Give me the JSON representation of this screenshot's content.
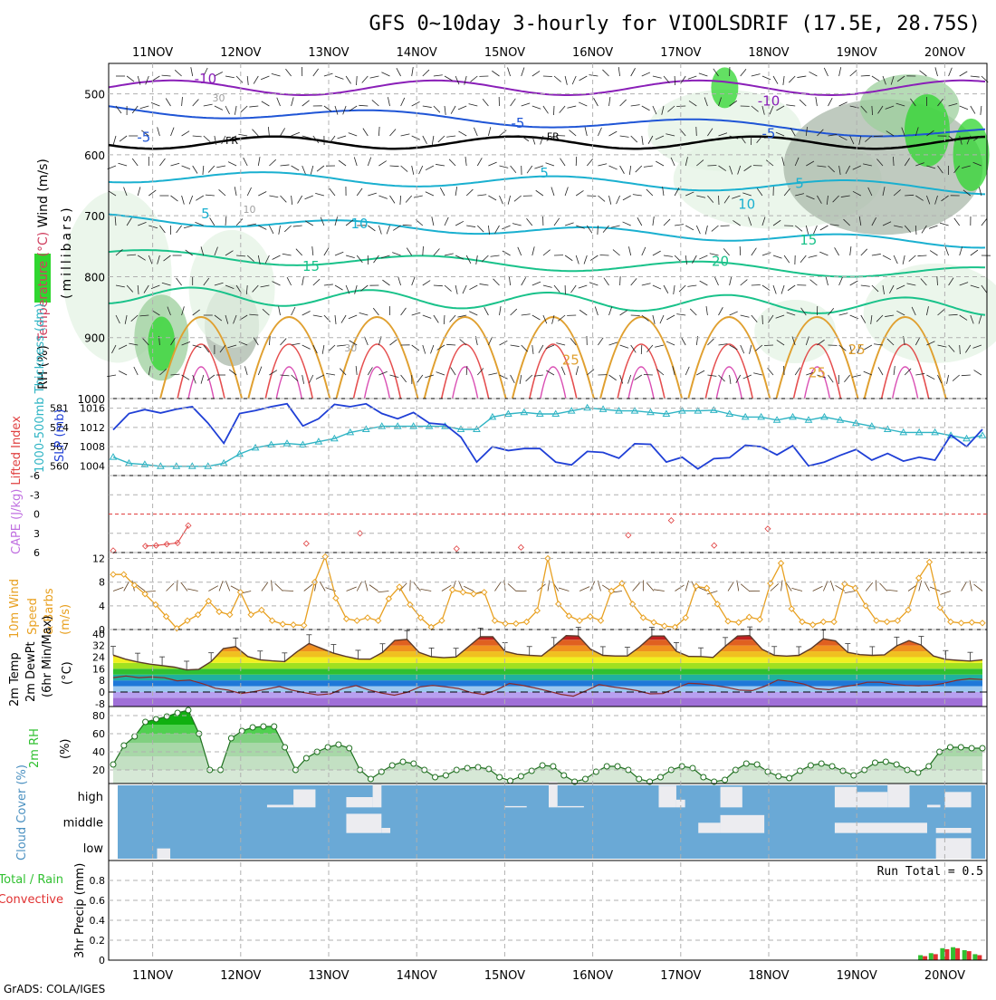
{
  "title": "GFS 0~10day 3-hourly for VIOOLSDRIF (17.5E, 28.75S)",
  "footer": "GrADS: COLA/IGES",
  "colors": {
    "grid": "#b0b0b0",
    "temp_neg": "#8a1fb8",
    "temp_cold": "#1f55d6",
    "temp_cool": "#1ab0d0",
    "temp_mild": "#19c28a",
    "temp_warm": "#e0a030",
    "temp_hot": "#e03030",
    "freezing": "#000000",
    "rh_light": "#e4f3e4",
    "rh_mid": "#9ccf9c",
    "rh_gray": "#a9b8a9",
    "rh_green": "#2fd62f",
    "slp": "#1f3fd6",
    "thickness": "#2fb4c4",
    "lifted": "#e04040",
    "cape": "#c070e0",
    "wind10": "#e8a020",
    "cloud": "#6aa9d6",
    "cloud_block": "#ececf0",
    "precip_total": "#30c030",
    "precip_conv": "#e03030"
  },
  "chart_data": [
    {
      "id": "upper",
      "type": "heatmap",
      "title": "",
      "x_labels": [
        "11NOV",
        "12NOV",
        "13NOV",
        "14NOV",
        "15NOV",
        "16NOV",
        "17NOV",
        "18NOV",
        "19NOV",
        "20NOV"
      ],
      "ylabel_parts": [
        "RH (%)",
        "Temperature (°C)",
        "Wind (m/s)"
      ],
      "ylabel_sub": "(millibars)",
      "y_ticks": [
        500,
        600,
        700,
        800,
        900,
        1000
      ],
      "ylim": [
        1000,
        450
      ],
      "isotherm_labels": [
        {
          "x": 11.6,
          "p": 475,
          "text": "-10"
        },
        {
          "x": 18.0,
          "p": 512,
          "text": "-10"
        },
        {
          "x": 10.9,
          "p": 571,
          "text": "-5"
        },
        {
          "x": 15.15,
          "p": 548,
          "text": "-5"
        },
        {
          "x": 18.0,
          "p": 565,
          "text": "-5"
        },
        {
          "x": 11.9,
          "p": 575,
          "text": "FR"
        },
        {
          "x": 15.55,
          "p": 568,
          "text": "FR"
        },
        {
          "x": 11.6,
          "p": 697,
          "text": "5"
        },
        {
          "x": 15.45,
          "p": 630,
          "text": "5"
        },
        {
          "x": 18.35,
          "p": 647,
          "text": "5"
        },
        {
          "x": 13.35,
          "p": 713,
          "text": "10"
        },
        {
          "x": 17.75,
          "p": 681,
          "text": "10"
        },
        {
          "x": 12.8,
          "p": 783,
          "text": "15"
        },
        {
          "x": 18.45,
          "p": 740,
          "text": "15"
        },
        {
          "x": 17.45,
          "p": 775,
          "text": "20"
        },
        {
          "x": 15.75,
          "p": 937,
          "text": "25"
        },
        {
          "x": 18.55,
          "p": 958,
          "text": "25"
        },
        {
          "x": 19.0,
          "p": 920,
          "text": "25"
        },
        {
          "x": 11.75,
          "p": 505,
          "text": "30"
        },
        {
          "x": 12.1,
          "p": 688,
          "text": "10"
        },
        {
          "x": 13.25,
          "p": 915,
          "text": "30"
        }
      ]
    },
    {
      "id": "slp",
      "type": "line",
      "ylabel_left": "1000-500mb Thickness (dm)",
      "ylabel_right": "SLP (mb)",
      "left_ticks": [
        560,
        567,
        574,
        581
      ],
      "right_ticks": [
        1004,
        1008,
        1012,
        1016
      ],
      "ylim_slp": [
        1002,
        1018
      ],
      "series": [
        {
          "name": "SLP",
          "values": [
            1011.5,
            1014.9,
            1015.7,
            1015.0,
            1015.8,
            1016.3,
            1012.9,
            1008.7,
            1014.9,
            1015.5,
            1016.3,
            1016.9,
            1012.3,
            1013.8,
            1016.8,
            1016.3,
            1016.9,
            1014.9,
            1013.8,
            1015.1,
            1012.9,
            1012.6,
            1010.0,
            1004.8,
            1008.0,
            1007.2,
            1007.6,
            1007.6,
            1004.8,
            1004.2,
            1007.0,
            1006.8,
            1005.6,
            1008.6,
            1008.5,
            1004.8,
            1005.8,
            1003.4,
            1005.5,
            1005.7,
            1008.3,
            1008.0,
            1006.3,
            1008.2,
            1004.0,
            1004.8,
            1006.2,
            1007.4,
            1005.2,
            1006.6,
            1005.0,
            1005.8,
            1005.2,
            1010.4,
            1008.0,
            1011.6
          ]
        },
        {
          "name": "Thickness",
          "values": [
            564.0,
            562.0,
            561.6,
            561.0,
            561.0,
            561.0,
            561.0,
            562.0,
            565.0,
            567.0,
            568.0,
            568.4,
            568.0,
            569.0,
            570.0,
            572.0,
            573.0,
            574.0,
            574.0,
            574.0,
            574.0,
            574.0,
            573.0,
            573.0,
            577.0,
            578.0,
            578.5,
            578.0,
            578.0,
            579.0,
            580.0,
            579.5,
            579.0,
            579.0,
            578.5,
            578.0,
            579.0,
            579.0,
            579.2,
            578.0,
            577.0,
            577.0,
            576.0,
            577.0,
            576.0,
            577.0,
            576.0,
            575.0,
            574.0,
            573.0,
            572.0,
            572.0,
            572.0,
            571.0,
            570.0,
            571.0
          ]
        }
      ]
    },
    {
      "id": "cape",
      "type": "line",
      "ylabel_parts": [
        "CAPE (J/kg)",
        "Lifted Index"
      ],
      "y_ticks": [
        -6,
        -3,
        0,
        3,
        6
      ],
      "ylim": [
        6,
        -6
      ],
      "series": [
        {
          "name": "Lifted Index",
          "values": [
            5.7,
            null,
            null,
            5.0,
            4.9,
            4.7,
            4.5,
            1.8,
            null,
            null,
            null,
            null,
            null,
            null,
            null,
            null,
            null,
            null,
            4.6,
            null,
            null,
            null,
            null,
            3.0,
            null,
            null,
            null,
            null,
            null,
            null,
            null,
            null,
            5.4,
            null,
            null,
            null,
            null,
            null,
            5.2,
            null,
            null,
            null,
            null,
            null,
            null,
            null,
            null,
            null,
            3.3,
            null,
            null,
            null,
            1.0,
            null,
            null,
            null,
            4.9,
            null,
            null,
            null,
            null,
            2.3,
            null,
            null,
            null,
            null,
            null,
            null,
            null,
            null,
            null,
            null,
            null,
            null,
            null,
            null,
            null,
            null,
            null,
            null,
            null,
            null
          ]
        },
        {
          "name": "LI points",
          "values": [
            5.5,
            5.4,
            5.2,
            5.0,
            5.3,
            4.9,
            4.7,
            3.1,
            1.9,
            3.9,
            5.4,
            5.2,
            4.7,
            5.3,
            4.8,
            5.1,
            4.5
          ]
        }
      ]
    },
    {
      "id": "wind10",
      "type": "line",
      "ylabel_parts": [
        "10m Wind",
        "Speed",
        "& Barbs",
        "(m/s)"
      ],
      "y_ticks": [
        0,
        4,
        8,
        12
      ],
      "ylim": [
        0,
        13
      ],
      "series": [
        {
          "name": "Speed",
          "values": [
            9.3,
            9.3,
            7.5,
            6.0,
            4.2,
            2.2,
            0.2,
            1.5,
            2.5,
            4.8,
            3.0,
            2.5,
            6.3,
            2.5,
            3.3,
            1.5,
            0.9,
            0.8,
            0.7,
            8.0,
            12.3,
            5.3,
            1.8,
            1.5,
            2.0,
            1.5,
            5.2,
            7.2,
            4.2,
            2.0,
            0.4,
            1.5,
            6.7,
            6.3,
            6.0,
            6.3,
            1.5,
            1.0,
            1.0,
            1.3,
            3.2,
            12.0,
            4.3,
            2.3,
            1.5,
            2.2,
            1.5,
            6.5,
            7.8,
            4.3,
            2.0,
            1.2,
            0.6,
            0.4,
            2.0,
            7.3,
            7.0,
            4.3,
            1.4,
            1.2,
            2.1,
            1.7,
            7.8,
            11.2,
            3.5,
            1.3,
            0.8,
            1.3,
            1.3,
            7.7,
            7.0,
            4.0,
            1.5,
            1.3,
            1.5,
            3.3,
            8.7,
            11.4,
            3.7,
            1.3,
            1.1,
            1.2,
            1.1
          ]
        }
      ]
    },
    {
      "id": "temp2m",
      "type": "area",
      "ylabel_parts": [
        "2m Temp",
        "2m DewPt",
        "(6hr Min/Max)"
      ],
      "units": "(°C)",
      "y_ticks": [
        -8,
        0,
        8,
        16,
        24,
        32,
        40
      ],
      "ylim": [
        -10,
        43
      ],
      "series": [
        {
          "name": "Temperature",
          "values": [
            25.4,
            22.6,
            20.7,
            19.2,
            18.2,
            17.1,
            15.2,
            15.6,
            21.0,
            29.9,
            31.2,
            24.4,
            22.2,
            21.4,
            20.9,
            27.6,
            33.4,
            30.0,
            26.7,
            24.5,
            22.7,
            22.6,
            27.2,
            35.5,
            36.2,
            27.2,
            24.3,
            23.6,
            24.1,
            31.0,
            38.0,
            38.0,
            28.0,
            26.0,
            25.3,
            24.8,
            31.5,
            38.8,
            38.5,
            29.4,
            25.2,
            24.8,
            24.8,
            31.0,
            38.5,
            38.5,
            28.0,
            24.5,
            24.4,
            23.8,
            31.5,
            38.5,
            38.8,
            29.5,
            25.3,
            24.7,
            25.2,
            29.9,
            36.6,
            35.2,
            27.3,
            25.7,
            25.2,
            25.6,
            31.8,
            35.4,
            32.3,
            24.8,
            22.5,
            21.8,
            21.3,
            22.2
          ]
        },
        {
          "name": "Dew Point",
          "values": [
            9.9,
            11.0,
            9.9,
            10.3,
            9.8,
            7.7,
            8.2,
            5.7,
            2.6,
            1.3,
            -1.0,
            0.2,
            2.0,
            3.8,
            1.2,
            -0.5,
            -2.0,
            -1.3,
            2.4,
            4.4,
            1.4,
            -0.8,
            -2.2,
            -0.2,
            3.5,
            4.5,
            3.6,
            2.4,
            -0.4,
            -1.7,
            1.4,
            5.9,
            4.6,
            2.8,
            0.7,
            -1.6,
            -2.9,
            0.9,
            5.1,
            3.6,
            2.4,
            0.9,
            -1.3,
            -1.1,
            2.6,
            6.0,
            5.6,
            4.5,
            3.2,
            1.3,
            1.0,
            4.1,
            8.3,
            7.3,
            5.5,
            2.2,
            1.6,
            3.5,
            4.7,
            6.7,
            6.7,
            5.4,
            4.5,
            4.3,
            4.6,
            6.0,
            8.1,
            9.1,
            8.6
          ]
        }
      ]
    },
    {
      "id": "rh2m",
      "type": "area",
      "ylabel_parts": [
        "2m RH",
        "(%)"
      ],
      "y_ticks": [
        20,
        40,
        60,
        80
      ],
      "ylim": [
        5,
        90
      ],
      "series": [
        {
          "name": "RH",
          "values": [
            26,
            47,
            57,
            73,
            76,
            79,
            83,
            86,
            60,
            20,
            20,
            55,
            63,
            67,
            68,
            68,
            45,
            20,
            33,
            40,
            45,
            48,
            44,
            20,
            10,
            18,
            25,
            29,
            27,
            20,
            12,
            14,
            20,
            22,
            23,
            21,
            12,
            8,
            13,
            19,
            25,
            24,
            14,
            7,
            10,
            18,
            24,
            24,
            20,
            10,
            7,
            12,
            20,
            24,
            22,
            12,
            7,
            9,
            20,
            27,
            26,
            18,
            13,
            11,
            19,
            25,
            27,
            24,
            19,
            14,
            20,
            28,
            29,
            26,
            20,
            17,
            24,
            40,
            45,
            45,
            44,
            44
          ]
        }
      ]
    },
    {
      "id": "cloud",
      "type": "heatmap",
      "ylabel": "Cloud Cover (%)",
      "levels": [
        "high",
        "middle",
        "low"
      ],
      "blocks": [
        {
          "x0": 12.3,
          "x1": 12.6,
          "level": "high",
          "cover": 10
        },
        {
          "x0": 12.6,
          "x1": 12.85,
          "level": "high",
          "cover": 70
        },
        {
          "x0": 13.2,
          "x1": 13.5,
          "level": "high",
          "cover": 40
        },
        {
          "x0": 13.5,
          "x1": 13.6,
          "level": "high",
          "cover": 90
        },
        {
          "x0": 13.2,
          "x1": 13.6,
          "level": "middle",
          "cover": 75
        },
        {
          "x0": 13.6,
          "x1": 13.7,
          "level": "middle",
          "cover": 20
        },
        {
          "x0": 15.0,
          "x1": 15.25,
          "level": "high",
          "cover": 5
        },
        {
          "x0": 15.5,
          "x1": 15.6,
          "level": "high",
          "cover": 100
        },
        {
          "x0": 15.6,
          "x1": 15.9,
          "level": "high",
          "cover": 5
        },
        {
          "x0": 16.75,
          "x1": 16.95,
          "level": "high",
          "cover": 85
        },
        {
          "x0": 16.95,
          "x1": 17.05,
          "level": "high",
          "cover": 30
        },
        {
          "x0": 17.45,
          "x1": 17.7,
          "level": "high",
          "cover": 80
        },
        {
          "x0": 17.2,
          "x1": 17.45,
          "level": "middle",
          "cover": 40
        },
        {
          "x0": 17.45,
          "x1": 17.95,
          "level": "middle",
          "cover": 70
        },
        {
          "x0": 18.75,
          "x1": 19.0,
          "level": "high",
          "cover": 80
        },
        {
          "x0": 19.0,
          "x1": 19.35,
          "level": "high",
          "cover": 60
        },
        {
          "x0": 19.35,
          "x1": 19.6,
          "level": "high",
          "cover": 90
        },
        {
          "x0": 18.75,
          "x1": 19.8,
          "level": "middle",
          "cover": 40
        },
        {
          "x0": 19.8,
          "x1": 19.95,
          "level": "high",
          "cover": 10
        },
        {
          "x0": 19.9,
          "x1": 20.3,
          "level": "middle",
          "cover": 20
        },
        {
          "x0": 20.0,
          "x1": 20.3,
          "level": "high",
          "cover": 60
        },
        {
          "x0": 19.9,
          "x1": 20.3,
          "level": "low",
          "cover": 80
        },
        {
          "x0": 11.05,
          "x1": 11.2,
          "level": "low",
          "cover": 40
        }
      ]
    },
    {
      "id": "precip",
      "type": "bar",
      "ylabel_parts": [
        "Total / Rain",
        "Convective"
      ],
      "ylabel_right": "3hr Precip (mm)",
      "y_ticks": [
        0,
        0.2,
        0.4,
        0.6,
        0.8
      ],
      "ylim": [
        0,
        1.0
      ],
      "run_total_label": "Run Total = 0.5",
      "bars": [
        {
          "x": 19.75,
          "total": 0.05,
          "conv": 0.04
        },
        {
          "x": 19.87,
          "total": 0.07,
          "conv": 0.06
        },
        {
          "x": 20.0,
          "total": 0.12,
          "conv": 0.11
        },
        {
          "x": 20.12,
          "total": 0.13,
          "conv": 0.12
        },
        {
          "x": 20.25,
          "total": 0.1,
          "conv": 0.09
        },
        {
          "x": 20.37,
          "total": 0.06,
          "conv": 0.05
        }
      ]
    }
  ]
}
